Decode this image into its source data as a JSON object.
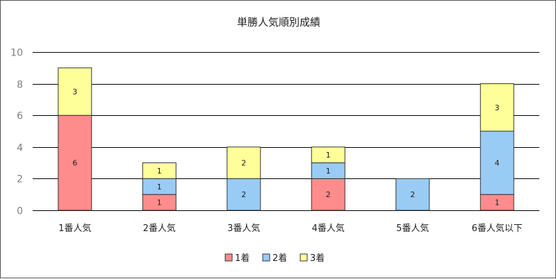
{
  "chart_data": {
    "type": "bar",
    "stacked": true,
    "title": "単勝人気順別成績",
    "xlabel": "",
    "ylabel": "",
    "categories": [
      "1番人気",
      "2番人気",
      "3番人気",
      "4番人気",
      "5番人気",
      "6番人気以下"
    ],
    "series": [
      {
        "name": "1着",
        "values": [
          6,
          1,
          0,
          2,
          0,
          1
        ],
        "color": "#ff8c8c"
      },
      {
        "name": "2着",
        "values": [
          0,
          1,
          2,
          1,
          2,
          4
        ],
        "color": "#99ccf5"
      },
      {
        "name": "3着",
        "values": [
          3,
          1,
          2,
          1,
          0,
          3
        ],
        "color": "#ffff99"
      }
    ],
    "ylim": [
      0,
      10
    ],
    "yticks": [
      0,
      2,
      4,
      6,
      8,
      10
    ],
    "grid": true,
    "legend": "bottom",
    "bar_outline_color": "#333333",
    "gridline_color": "#000000"
  }
}
